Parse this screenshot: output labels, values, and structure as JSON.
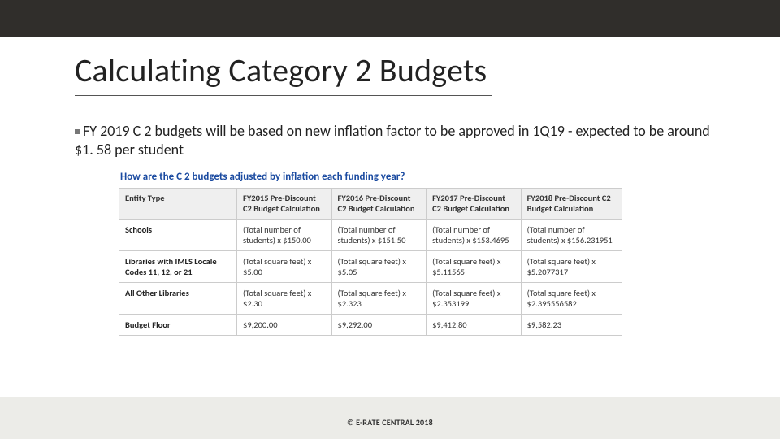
{
  "slide": {
    "title": "Calculating Category 2 Budgets",
    "bullet": "FY 2019 C 2 budgets will be based on new inflation factor to be approved in 1Q19 - expected to be around $1. 58 per student",
    "footer": "© E-RATE CENTRAL 2018"
  },
  "table": {
    "title": "How are the C 2 budgets adjusted by inflation each funding year?",
    "columns": [
      "Entity Type",
      "FY2015 Pre-Discount C2 Budget Calculation",
      "FY2016 Pre-Discount C2 Budget Calculation",
      "FY2017 Pre-Discount C2 Budget Calculation",
      "FY2018 Pre-Discount C2 Budget Calculation"
    ],
    "rows": [
      {
        "label": "Schools",
        "c0": "(Total number of students) x $150.00",
        "c1": "(Total number of students) x $151.50",
        "c2": "(Total number of students) x $153.4695",
        "c3": "(Total number of students) x $156.231951"
      },
      {
        "label": "Libraries with IMLS Locale Codes 11, 12, or 21",
        "c0": "(Total square feet) x $5.00",
        "c1": "(Total square feet) x $5.05",
        "c2": "(Total square feet) x $5.11565",
        "c3": "(Total square feet) x $5.2077317"
      },
      {
        "label": "All Other Libraries",
        "c0": "(Total square feet) x $2.30",
        "c1": "(Total square feet) x $2.323",
        "c2": "(Total square feet) x $2.353199",
        "c3": "(Total square feet) x $2.395556582"
      },
      {
        "label": "Budget Floor",
        "c0": "$9,200.00",
        "c1": "$9,292.00",
        "c2": "$9,412.80",
        "c3": "$9,582.23"
      }
    ]
  },
  "colors": {
    "top_strip": "#302e2b",
    "bottom_strip": "#ecece8",
    "table_title": "#1a4aa0",
    "header_bg": "#efefef",
    "border": "#cccccc",
    "text": "#222222"
  }
}
